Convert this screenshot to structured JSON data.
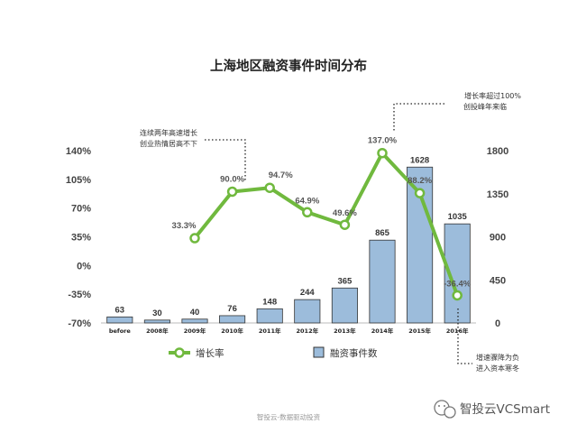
{
  "colors": {
    "bar_fill": "#9cbcdb",
    "bar_stroke": "#333333",
    "line": "#70b93e",
    "marker_fill": "#ffffff",
    "text": "#333333"
  },
  "chart_data": {
    "type": "bar",
    "title": "上海地区融资事件时间分布",
    "categories": [
      "before",
      "2008年",
      "2009年",
      "2010年",
      "2011年",
      "2012年",
      "2013年",
      "2014年",
      "2015年",
      "2016年"
    ],
    "series": [
      {
        "name": "融资事件数",
        "type": "bar",
        "axis": "right",
        "values": [
          63,
          30,
          40,
          76,
          148,
          244,
          365,
          865,
          1628,
          1035
        ]
      },
      {
        "name": "增长率",
        "type": "line",
        "axis": "left",
        "values": [
          null,
          null,
          33.3,
          90.0,
          94.7,
          64.9,
          49.6,
          137.0,
          88.2,
          -36.4
        ],
        "labels": [
          "",
          "",
          "33.3%",
          "90.0%",
          "94.7%",
          "64.9%",
          "49.6%",
          "137.0%",
          "88.2%",
          "-36.4%"
        ]
      }
    ],
    "y_left": {
      "ylim": [
        -70,
        140
      ],
      "ticks": [
        140,
        105,
        70,
        35,
        0,
        -35,
        -70
      ],
      "tick_labels": [
        "140%",
        "105%",
        "70%",
        "35%",
        "0%",
        "-35%",
        "-70%"
      ]
    },
    "y_right": {
      "ylim": [
        0,
        1800
      ],
      "ticks": [
        1800,
        1350,
        900,
        450,
        0
      ],
      "tick_labels": [
        "1800",
        "1350",
        "900",
        "450",
        "0"
      ]
    },
    "grid": false,
    "legend_position": "bottom",
    "annotations": [
      {
        "lines": [
          "连续两年高速增长",
          "创业热情居高不下"
        ]
      },
      {
        "lines": [
          "增长率超过100%",
          "创投峰年来临"
        ]
      },
      {
        "lines": [
          "增速骤降为负",
          "进入资本寒冬"
        ]
      }
    ]
  },
  "footer": {
    "text": "智投云-数据驱动投资"
  },
  "brand": {
    "text": "智投云VCSmart"
  }
}
